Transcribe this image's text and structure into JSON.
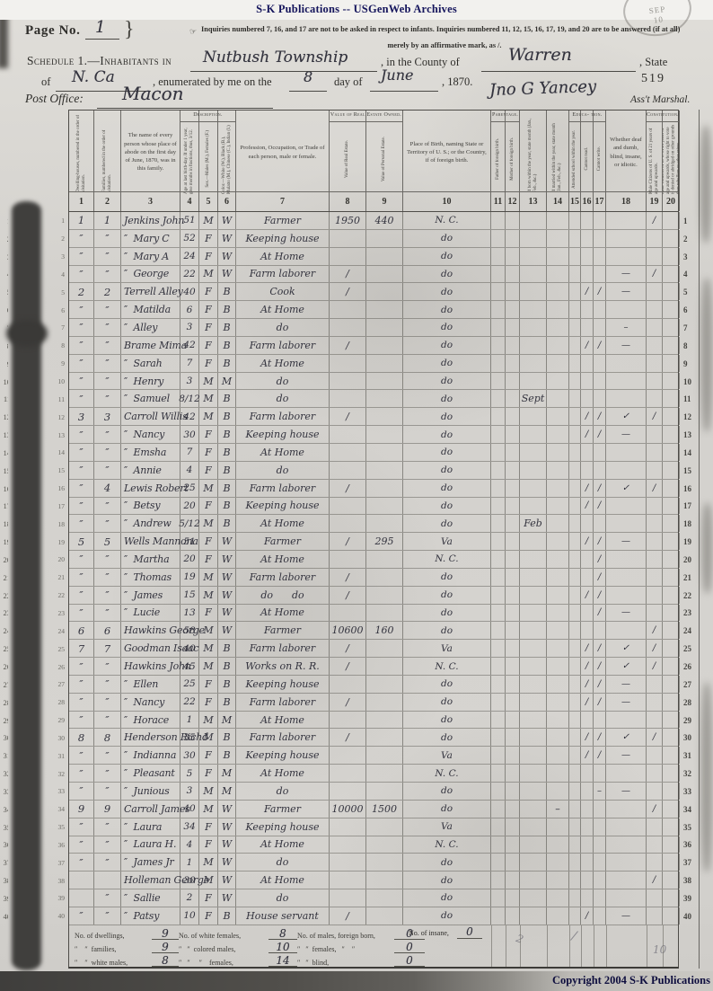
{
  "banner": "S-K Publications -- USGenWeb Archives",
  "copyright": "Copyright 2004 S-K Publications",
  "stamp": {
    "line1": "SEP",
    "line2": "10"
  },
  "page_no": {
    "label": "Page No.",
    "value": "1",
    "brace": "}"
  },
  "inquiries": {
    "pointer": "☞",
    "line1": "Inquiries numbered 7, 16, and 17 are not to be asked in respect to infants.   Inquiries numbered 11, 12, 15, 16, 17, 19, and 20 are to be answered (if at all)",
    "line2": "merely by an affirmative mark, as /."
  },
  "schedule": {
    "prefix": "Schedule 1.—Inhabitants in",
    "township": "Nutbush Township",
    "mid": ", in the County of",
    "county": "Warren",
    "suffix": ", State",
    "of_label": "of",
    "state": "N. Ca",
    "enumerated": ", enumerated by me on the",
    "day": "8",
    "day_label": "day of",
    "month": "June",
    "year": ", 1870.",
    "sheet_no": "519"
  },
  "post_office": {
    "label": "Post Office:",
    "value": "Macon",
    "signature": "Jno G Yancey",
    "marshal": "Ass't Marshal."
  },
  "table": {
    "groups": {
      "description": "Description.",
      "value_owned": "Value of Real Estate Owned.",
      "parentage": "Parentage.",
      "education": "Educa- tion.",
      "constitutional": "Constitutional Relations."
    },
    "columns": [
      {
        "n": "1",
        "label": "Dwelling-houses, numbered in the order of visitation."
      },
      {
        "n": "2",
        "label": "Families, numbered in the order of visitation."
      },
      {
        "n": "3",
        "label": "The name of every person whose place of abode on the first day of June, 1870, was in this family."
      },
      {
        "n": "4",
        "label": "Age at last birth-day. If under 1 year, give months in fractions, thus, 3/12."
      },
      {
        "n": "5",
        "label": "Sex.—Males (M.), Females (F.)"
      },
      {
        "n": "6",
        "label": "Color.—White (W.), Black (B.), Mulatto (M.), Chinese (C.), Indian (I.)"
      },
      {
        "n": "7",
        "label": "Profession, Occupation, or Trade of each person, male or female."
      },
      {
        "n": "8",
        "label": "Value of Real Estate."
      },
      {
        "n": "9",
        "label": "Value of Personal Estate."
      },
      {
        "n": "10",
        "label": "Place of Birth, naming State or Territory of U. S.; or the Country, if of foreign birth."
      },
      {
        "n": "11",
        "label": "Father of foreign birth."
      },
      {
        "n": "12",
        "label": "Mother of foreign birth."
      },
      {
        "n": "13",
        "label": "If born within the year, state month (Jan., Feb., &c.)"
      },
      {
        "n": "14",
        "label": "If married within the year, state month (Jan., Feb., &c.)"
      },
      {
        "n": "15",
        "label": "Attended school within the year."
      },
      {
        "n": "16",
        "label": "Cannot read."
      },
      {
        "n": "17",
        "label": "Cannot write."
      },
      {
        "n": "18",
        "label": "Whether deaf and dumb, blind, insane, or idiotic."
      },
      {
        "n": "19",
        "label": "Male Citizens of U. S. of 21 years of age and upwards."
      },
      {
        "n": "20",
        "label": "Male Citizens of U. S. of 21 years of age and upwards, whose right to vote is denied or abridged on other grounds than rebellion or other crime."
      }
    ]
  },
  "rows": [
    {
      "n": 1,
      "dw": "1",
      "fam": "1",
      "name": "Jenkins John",
      "age": "51",
      "sex": "M",
      "color": "W",
      "occ": "Farmer",
      "re": "1950",
      "pe": "440",
      "birth": "N. C.",
      "c19": "/"
    },
    {
      "n": 2,
      "dw": "″",
      "fam": "″",
      "name": "″  Mary C",
      "age": "52",
      "sex": "F",
      "color": "W",
      "occ": "Keeping house",
      "birth": "do"
    },
    {
      "n": 3,
      "dw": "″",
      "fam": "″",
      "name": "″  Mary A",
      "age": "24",
      "sex": "F",
      "color": "W",
      "occ": "At Home",
      "birth": "do"
    },
    {
      "n": 4,
      "dw": "″",
      "fam": "″",
      "name": "″  George",
      "age": "22",
      "sex": "M",
      "color": "W",
      "occ": "Farm laborer",
      "re": "/",
      "birth": "do",
      "c18": "—",
      "c19": "/"
    },
    {
      "n": 5,
      "dw": "2",
      "fam": "2",
      "name": "Terrell Alley",
      "age": "40",
      "sex": "F",
      "color": "B",
      "occ": "Cook",
      "re": "/",
      "birth": "do",
      "c16": "/",
      "c17": "/",
      "c18": "—"
    },
    {
      "n": 6,
      "dw": "″",
      "fam": "″",
      "name": "″  Matilda",
      "age": "6",
      "sex": "F",
      "color": "B",
      "occ": "At Home",
      "birth": "do"
    },
    {
      "n": 7,
      "dw": "″",
      "fam": "″",
      "name": "″  Alley",
      "age": "3",
      "sex": "F",
      "color": "B",
      "occ": "do",
      "birth": "do",
      "c18": "–"
    },
    {
      "n": 8,
      "dw": "″",
      "fam": "″",
      "name": "Brame Mima",
      "age": "42",
      "sex": "F",
      "color": "B",
      "occ": "Farm laborer",
      "re": "/",
      "birth": "do",
      "c16": "/",
      "c17": "/",
      "c18": "—"
    },
    {
      "n": 9,
      "dw": "″",
      "fam": "″",
      "name": "″  Sarah",
      "age": "7",
      "sex": "F",
      "color": "B",
      "occ": "At Home",
      "birth": "do"
    },
    {
      "n": 10,
      "dw": "″",
      "fam": "″",
      "name": "″  Henry",
      "age": "3",
      "sex": "M",
      "color": "M",
      "occ": "do",
      "birth": "do"
    },
    {
      "n": 11,
      "dw": "″",
      "fam": "″",
      "name": "″  Samuel",
      "age": "8/12",
      "sex": "M",
      "color": "B",
      "occ": "do",
      "birth": "do",
      "m13": "Sept"
    },
    {
      "n": 12,
      "dw": "3",
      "fam": "3",
      "name": "Carroll Willis",
      "age": "42",
      "sex": "M",
      "color": "B",
      "occ": "Farm laborer",
      "re": "/",
      "birth": "do",
      "c16": "/",
      "c17": "/",
      "c18": "✓",
      "c19": "/"
    },
    {
      "n": 13,
      "dw": "″",
      "fam": "″",
      "name": "″  Nancy",
      "age": "30",
      "sex": "F",
      "color": "B",
      "occ": "Keeping house",
      "birth": "do",
      "c16": "/",
      "c17": "/",
      "c18": "—"
    },
    {
      "n": 14,
      "dw": "″",
      "fam": "″",
      "name": "″  Emsha",
      "age": "7",
      "sex": "F",
      "color": "B",
      "occ": "At Home",
      "birth": "do"
    },
    {
      "n": 15,
      "dw": "″",
      "fam": "″",
      "name": "″  Annie",
      "age": "4",
      "sex": "F",
      "color": "B",
      "occ": "do",
      "birth": "do"
    },
    {
      "n": 16,
      "dw": "″",
      "fam": "4",
      "name": "Lewis Robert",
      "age": "25",
      "sex": "M",
      "color": "B",
      "occ": "Farm laborer",
      "re": "/",
      "birth": "do",
      "c16": "/",
      "c17": "/",
      "c18": "✓",
      "c19": "/"
    },
    {
      "n": 17,
      "dw": "″",
      "fam": "″",
      "name": "″  Betsy",
      "age": "20",
      "sex": "F",
      "color": "B",
      "occ": "Keeping house",
      "birth": "do",
      "c16": "/",
      "c17": "/"
    },
    {
      "n": 18,
      "dw": "″",
      "fam": "″",
      "name": "″  Andrew",
      "age": "5/12",
      "sex": "M",
      "color": "B",
      "occ": "At Home",
      "birth": "do",
      "m13": "Feb"
    },
    {
      "n": 19,
      "dw": "5",
      "fam": "5",
      "name": "Wells Mannona",
      "age": "51",
      "sex": "F",
      "color": "W",
      "occ": "Farmer",
      "re": "/",
      "pe": "295",
      "birth": "Va",
      "c16": "/",
      "c17": "/",
      "c18": "—"
    },
    {
      "n": 20,
      "dw": "″",
      "fam": "″",
      "name": "″  Martha",
      "age": "20",
      "sex": "F",
      "color": "W",
      "occ": "At Home",
      "birth": "N. C.",
      "c17": "/"
    },
    {
      "n": 21,
      "dw": "″",
      "fam": "″",
      "name": "″  Thomas",
      "age": "19",
      "sex": "M",
      "color": "W",
      "occ": "Farm laborer",
      "re": "/",
      "birth": "do",
      "c17": "/"
    },
    {
      "n": 22,
      "dw": "″",
      "fam": "″",
      "name": "″  James",
      "age": "15",
      "sex": "M",
      "color": "W",
      "occ": "do      do",
      "re": "/",
      "birth": "do",
      "c16": "/",
      "c17": "/"
    },
    {
      "n": 23,
      "dw": "″",
      "fam": "″",
      "name": "″  Lucie",
      "age": "13",
      "sex": "F",
      "color": "W",
      "occ": "At Home",
      "birth": "do",
      "c17": "/",
      "c18": "—"
    },
    {
      "n": 24,
      "dw": "6",
      "fam": "6",
      "name": "Hawkins George",
      "age": "58",
      "sex": "M",
      "color": "W",
      "occ": "Farmer",
      "re": "10600",
      "pe": "160",
      "birth": "do",
      "c19": "/"
    },
    {
      "n": 25,
      "dw": "7",
      "fam": "7",
      "name": "Goodman Isaac",
      "age": "40",
      "sex": "M",
      "color": "B",
      "occ": "Farm laborer",
      "re": "/",
      "birth": "Va",
      "c16": "/",
      "c17": "/",
      "c18": "✓",
      "c19": "/"
    },
    {
      "n": 26,
      "dw": "″",
      "fam": "″",
      "name": "Hawkins John",
      "age": "45",
      "sex": "M",
      "color": "B",
      "occ": "Works on R. R.",
      "re": "/",
      "birth": "N. C.",
      "c16": "/",
      "c17": "/",
      "c18": "✓",
      "c19": "/"
    },
    {
      "n": 27,
      "dw": "″",
      "fam": "″",
      "name": "″  Ellen",
      "age": "25",
      "sex": "F",
      "color": "B",
      "occ": "Keeping house",
      "birth": "do",
      "c16": "/",
      "c17": "/",
      "c18": "—"
    },
    {
      "n": 28,
      "dw": "″",
      "fam": "″",
      "name": "″  Nancy",
      "age": "22",
      "sex": "F",
      "color": "B",
      "occ": "Farm laborer",
      "re": "/",
      "birth": "do",
      "c16": "/",
      "c17": "/",
      "c18": "—"
    },
    {
      "n": 29,
      "dw": "″",
      "fam": "″",
      "name": "″  Horace",
      "age": "1",
      "sex": "M",
      "color": "M",
      "occ": "At Home",
      "birth": "do"
    },
    {
      "n": 30,
      "dw": "8",
      "fam": "8",
      "name": "Henderson Richd",
      "age": "35",
      "sex": "M",
      "color": "B",
      "occ": "Farm laborer",
      "re": "/",
      "birth": "do",
      "c16": "/",
      "c17": "/",
      "c18": "✓",
      "c19": "/"
    },
    {
      "n": 31,
      "dw": "″",
      "fam": "″",
      "name": "″  Indianna",
      "age": "30",
      "sex": "F",
      "color": "B",
      "occ": "Keeping house",
      "birth": "Va",
      "c16": "/",
      "c17": "/",
      "c18": "—"
    },
    {
      "n": 32,
      "dw": "″",
      "fam": "″",
      "name": "″  Pleasant",
      "age": "5",
      "sex": "F",
      "color": "M",
      "occ": "At Home",
      "birth": "N. C."
    },
    {
      "n": 33,
      "dw": "″",
      "fam": "″",
      "name": "″  Junious",
      "age": "3",
      "sex": "M",
      "color": "M",
      "occ": "do",
      "birth": "do",
      "c17": "–",
      "c18": "—"
    },
    {
      "n": 34,
      "dw": "9",
      "fam": "9",
      "name": "Carroll James",
      "age": "40",
      "sex": "M",
      "color": "W",
      "occ": "Farmer",
      "re": "10000",
      "pe": "1500",
      "birth": "do",
      "m14": "–",
      "c19": "/"
    },
    {
      "n": 35,
      "dw": "″",
      "fam": "″",
      "name": "″  Laura",
      "age": "34",
      "sex": "F",
      "color": "W",
      "occ": "Keeping house",
      "birth": "Va"
    },
    {
      "n": 36,
      "dw": "″",
      "fam": "″",
      "name": "″  Laura H.",
      "age": "4",
      "sex": "F",
      "color": "W",
      "occ": "At Home",
      "birth": "N. C."
    },
    {
      "n": 37,
      "dw": "″",
      "fam": "″",
      "name": "″  James Jr",
      "age": "1",
      "sex": "M",
      "color": "W",
      "occ": "do",
      "birth": "do"
    },
    {
      "n": 38,
      "dw": "",
      "fam": "",
      "name": "Holleman George",
      "age": "30",
      "sex": "M",
      "color": "W",
      "occ": "At Home",
      "birth": "do",
      "c19": "/"
    },
    {
      "n": 39,
      "dw": "",
      "fam": "″",
      "name": "″  Sallie",
      "age": "2",
      "sex": "F",
      "color": "W",
      "occ": "do",
      "birth": "do"
    },
    {
      "n": 40,
      "dw": "″",
      "fam": "″",
      "name": "″  Patsy",
      "age": "10",
      "sex": "F",
      "color": "B",
      "occ": "House servant",
      "re": "/",
      "birth": "do",
      "c16": "/",
      "c18": "—"
    }
  ],
  "totals": {
    "lines": [
      [
        {
          "label": "No. of dwellings,",
          "value": "9"
        },
        {
          "label": "No. of white females,",
          "value": "8"
        },
        {
          "label": "No. of males, foreign born,",
          "value": "0"
        }
      ],
      [
        {
          "label": "″    ″  families,",
          "value": "9"
        },
        {
          "label": "″   ″  colored males,",
          "value": "10"
        },
        {
          "label": "″   ″  females,   ″    ″",
          "value": "0"
        }
      ],
      [
        {
          "label": "″    ″  white males,",
          "value": "8"
        },
        {
          "label": "″   ″     ″    females,",
          "value": "14"
        },
        {
          "label": "″   ″  blind,",
          "value": "0"
        }
      ]
    ],
    "insane": {
      "label": "No. of insane,",
      "value": "0"
    },
    "pencil": {
      "a": "2",
      "b": "10",
      "c": "/"
    }
  }
}
